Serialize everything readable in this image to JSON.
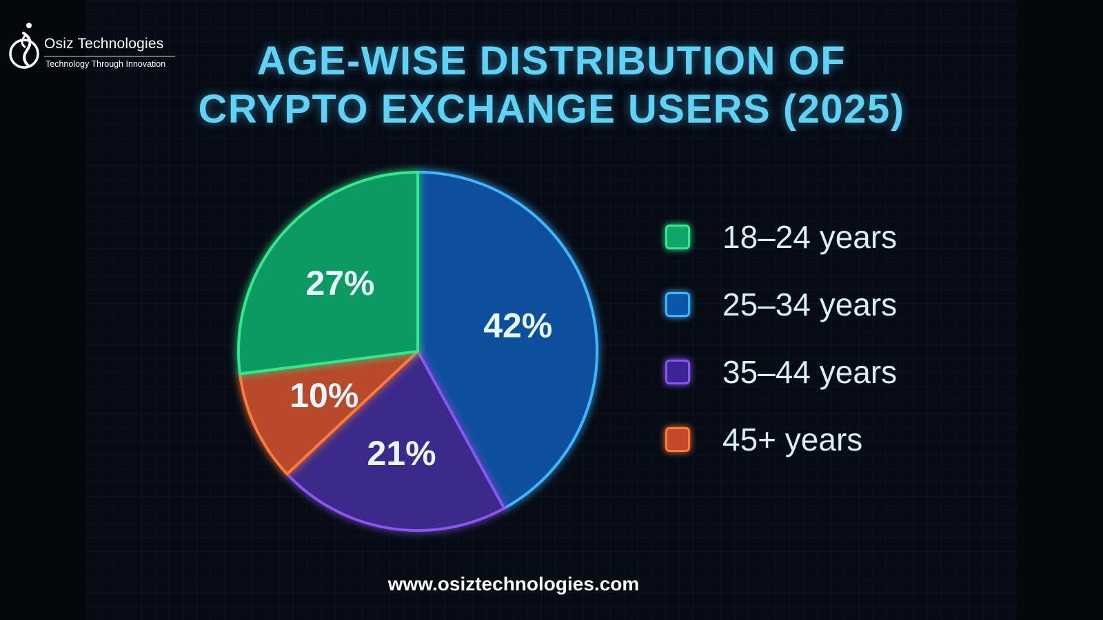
{
  "brand": {
    "name": "Osiz Technologies",
    "tagline": "Technology Through Innovation"
  },
  "title_lines": [
    "AGE-WISE DISTRIBUTION OF",
    "CRYPTO EXCHANGE USERS (2025)"
  ],
  "footer_url": "www.osiztechnologies.com",
  "colors": {
    "background": "#060b14",
    "title": "#5fd2f5"
  },
  "chart_data": {
    "type": "pie",
    "title": "AGE-WISE DISTRIBUTION OF CRYPTO EXCHANGE USERS (2025)",
    "unit": "%",
    "legend_position": "right",
    "slices": [
      {
        "label": "25–34 years",
        "value": 42,
        "display": "42%",
        "fill": "#0b4f9c",
        "stroke": "#3fb6ff"
      },
      {
        "label": "35–44 years",
        "value": 21,
        "display": "21%",
        "fill": "#3a2a8a",
        "stroke": "#8a55f0"
      },
      {
        "label": "45+ years",
        "value": 10,
        "display": "10%",
        "fill": "#b8482a",
        "stroke": "#ff7a3a"
      },
      {
        "label": "18–24 years",
        "value": 27,
        "display": "27%",
        "fill": "#0e9a62",
        "stroke": "#33ea8e"
      }
    ],
    "legend": [
      {
        "label": "18–24 years",
        "fill": "#10a56a",
        "stroke": "#33ea8e"
      },
      {
        "label": "25–34 years",
        "fill": "#0b56a8",
        "stroke": "#3fb6ff"
      },
      {
        "label": "35–44 years",
        "fill": "#3b2596",
        "stroke": "#8a55f0"
      },
      {
        "label": "45+ years",
        "fill": "#c24a2a",
        "stroke": "#ff7a3a"
      }
    ]
  }
}
